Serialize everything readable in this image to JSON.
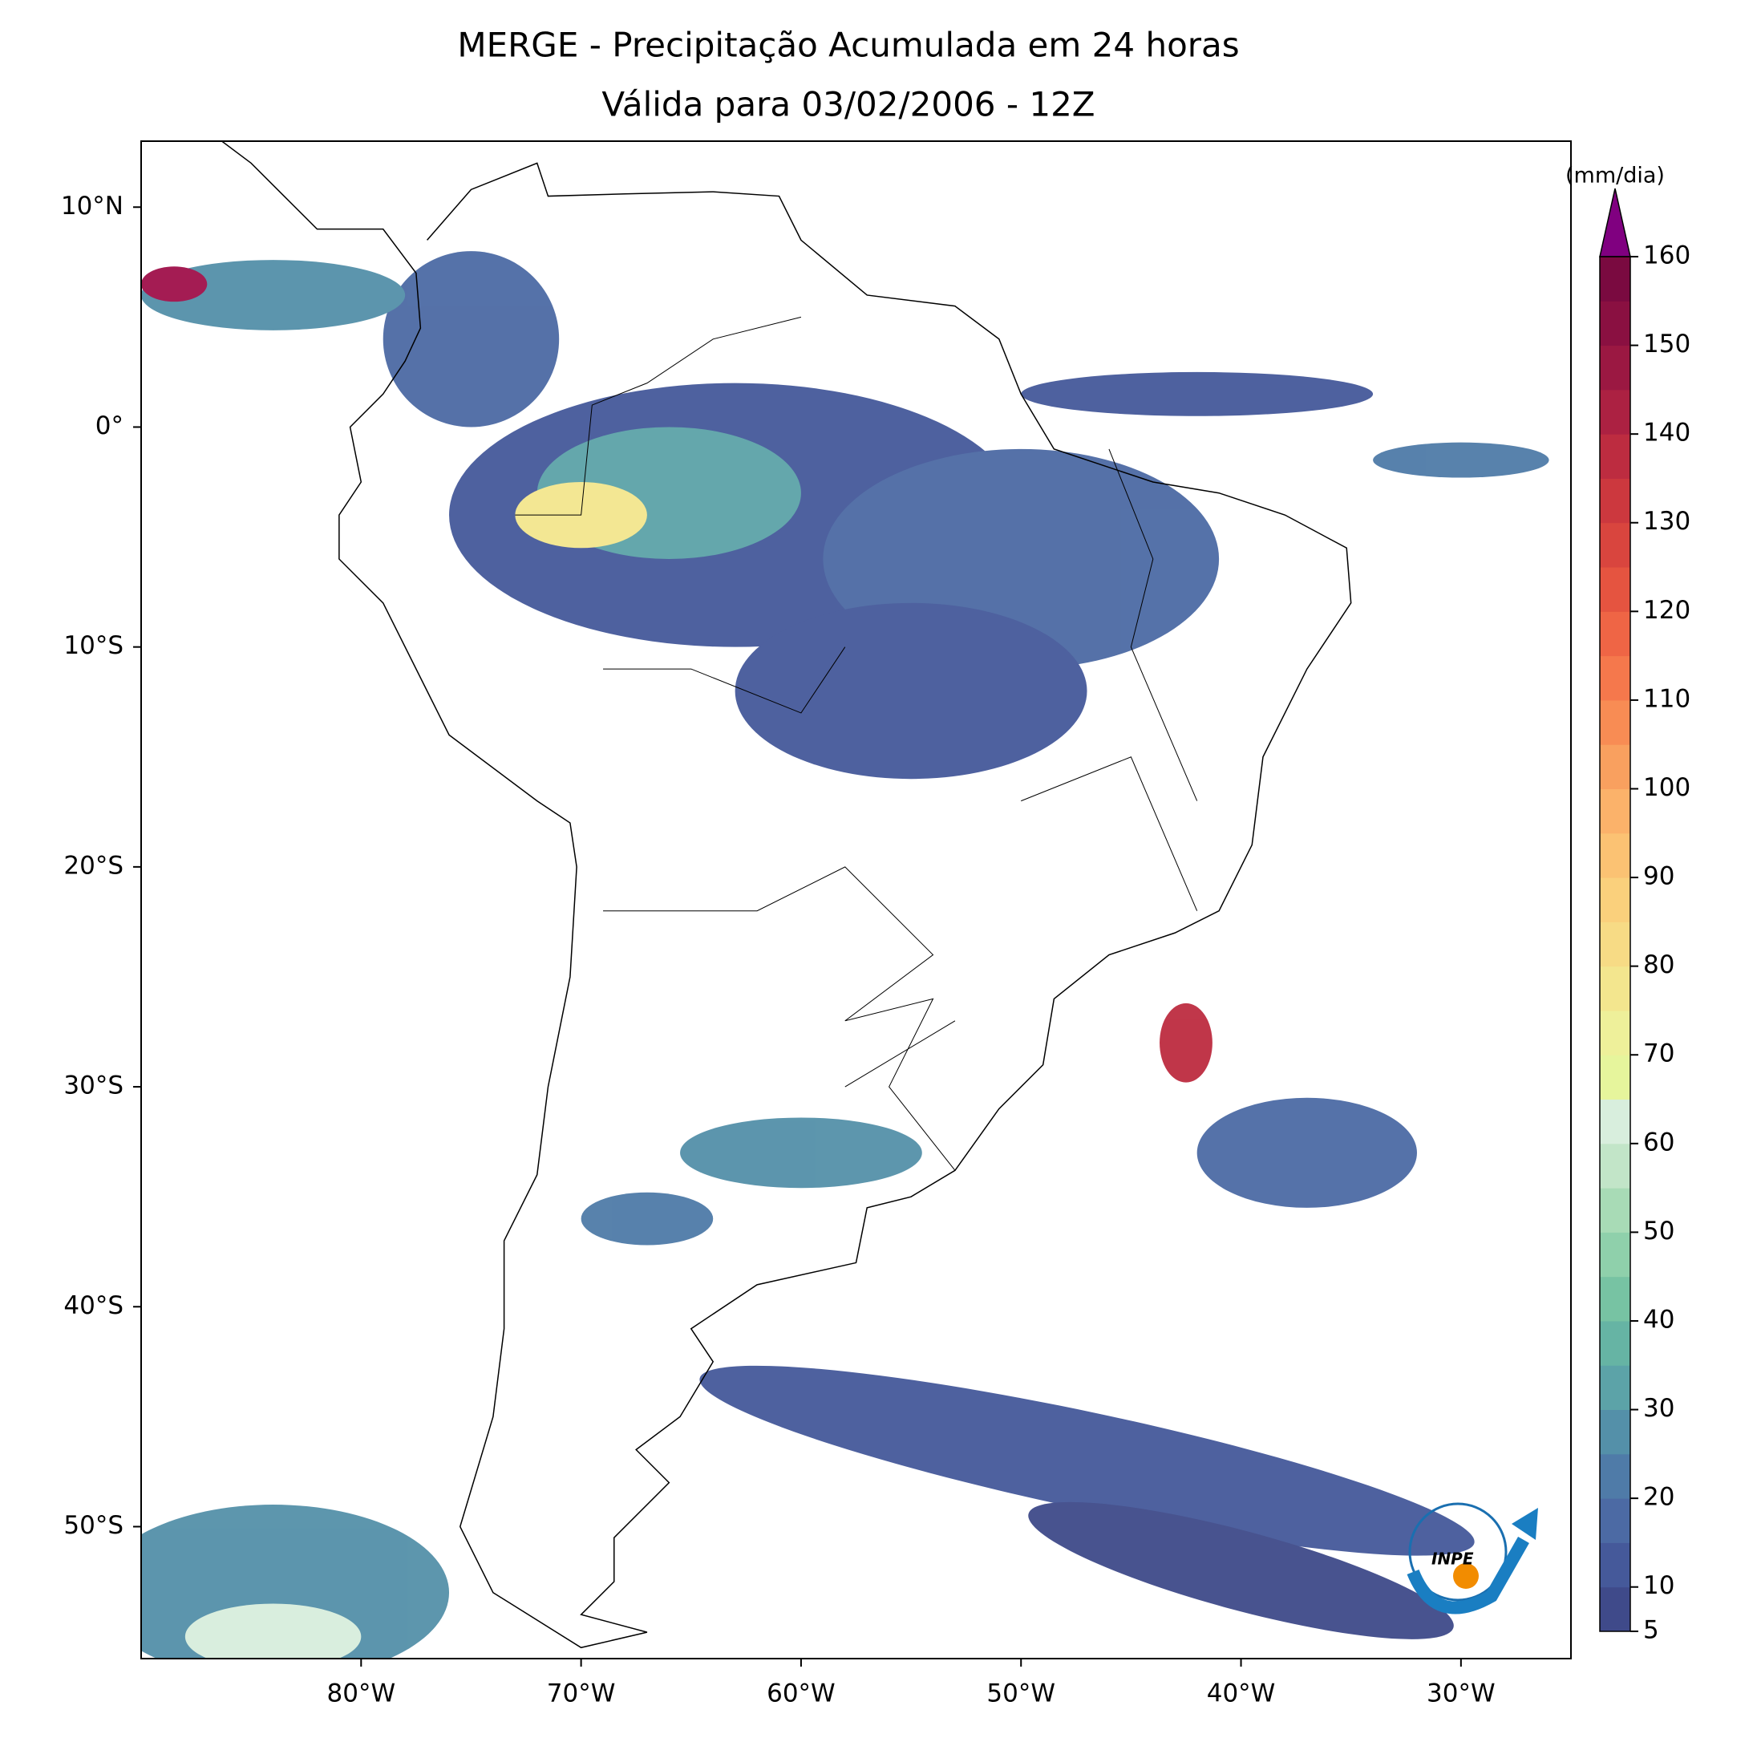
{
  "chart_data": {
    "type": "map",
    "title": "MERGE - Precipitação Acumulada em 24 horas",
    "subtitle": "Válida para 03/02/2006 - 12Z",
    "xlim": [
      -90,
      -25
    ],
    "ylim": [
      -56,
      13
    ],
    "xticks": [
      {
        "value": -80,
        "label": "80°W"
      },
      {
        "value": -70,
        "label": "70°W"
      },
      {
        "value": -60,
        "label": "60°W"
      },
      {
        "value": -50,
        "label": "50°W"
      },
      {
        "value": -40,
        "label": "40°W"
      },
      {
        "value": -30,
        "label": "30°W"
      }
    ],
    "yticks": [
      {
        "value": 10,
        "label": "10°N"
      },
      {
        "value": 0,
        "label": "0°"
      },
      {
        "value": -10,
        "label": "10°S"
      },
      {
        "value": -20,
        "label": "20°S"
      },
      {
        "value": -30,
        "label": "30°S"
      },
      {
        "value": -40,
        "label": "40°S"
      },
      {
        "value": -50,
        "label": "50°S"
      }
    ],
    "colorbar": {
      "label": "(mm/dia)",
      "lim": [
        5,
        160
      ],
      "step": 5,
      "ticks": [
        5,
        10,
        20,
        30,
        40,
        50,
        60,
        70,
        80,
        90,
        100,
        110,
        120,
        130,
        140,
        150,
        160
      ],
      "colors": [
        "#3f4a8a",
        "#45599a",
        "#4c6aa4",
        "#4f7ba8",
        "#5490a9",
        "#5ca3a8",
        "#66b4a4",
        "#77c3a3",
        "#8fd0ab",
        "#a8dbb6",
        "#c2e5c8",
        "#d8eedd",
        "#e6f59c",
        "#eef09a",
        "#f3e68e",
        "#f7db85",
        "#fad07c",
        "#fbc273",
        "#fbb26a",
        "#f9a05f",
        "#f88c54",
        "#f5784c",
        "#ef6545",
        "#e55440",
        "#d9453e",
        "#cc383e",
        "#bd2c40",
        "#ac2142",
        "#9b1842",
        "#8a1041",
        "#7a0a40"
      ],
      "extend_color": "#800080"
    },
    "logo_text": "INPE"
  }
}
